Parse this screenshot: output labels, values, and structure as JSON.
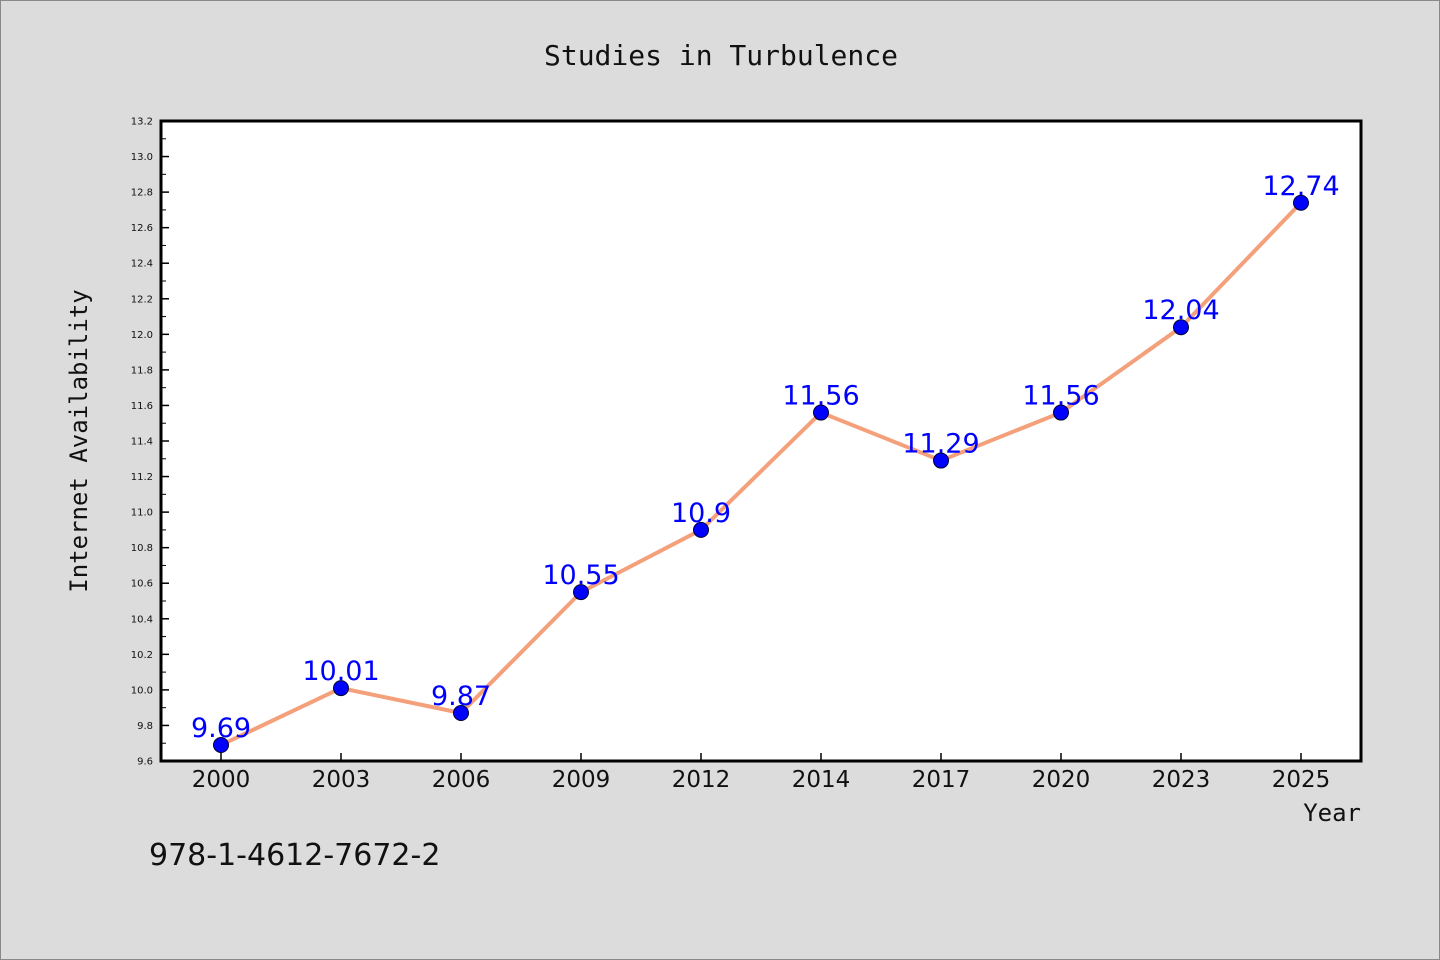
{
  "chart_data": {
    "type": "line",
    "title": "Studies in Turbulence",
    "xlabel": "Year",
    "ylabel": "Internet Availability",
    "categories": [
      "2000",
      "2003",
      "2006",
      "2009",
      "2012",
      "2014",
      "2017",
      "2020",
      "2023",
      "2025"
    ],
    "series": [
      {
        "values": [
          9.69,
          10.01,
          9.87,
          10.55,
          10.9,
          11.56,
          11.29,
          11.56,
          12.04,
          12.74
        ],
        "labels": [
          "9.69",
          "10.01",
          "9.87",
          "10.55",
          "10.9",
          "11.56",
          "11.29",
          "11.56",
          "12.04",
          "12.74"
        ]
      }
    ],
    "ylim": [
      9.6,
      13.2
    ],
    "yticks": [
      "9.6",
      "9.8",
      "10.0",
      "10.2",
      "10.4",
      "10.6",
      "10.8",
      "11.0",
      "11.2",
      "11.4",
      "11.6",
      "11.8",
      "12.0",
      "12.2",
      "12.4",
      "12.6",
      "12.8",
      "13.0",
      "13.2"
    ],
    "grid": false,
    "legend": "none",
    "colors": {
      "line": "#f4a07a",
      "marker": "#0000ff",
      "label": "#0000ff",
      "plot_bg": "#ffffff",
      "page_bg": "#dcdcdc"
    }
  },
  "footer": {
    "isbn": "978-1-4612-7672-2"
  }
}
